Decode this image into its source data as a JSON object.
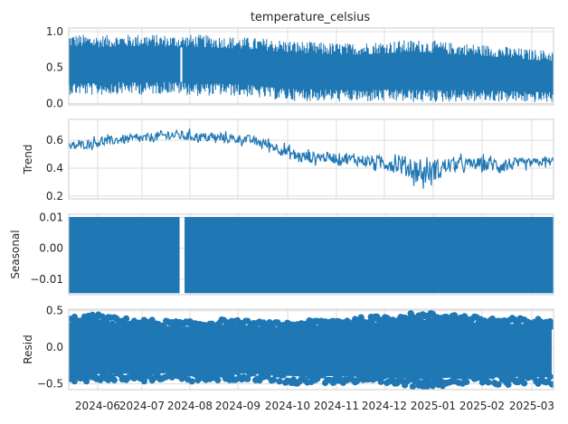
{
  "chart_data": {
    "type": "line",
    "title": "temperature_celsius",
    "x_tick_labels": [
      "2024-06",
      "2024-07",
      "2024-08",
      "2024-09",
      "2024-10",
      "2024-11",
      "2024-12",
      "2025-01",
      "2025-02",
      "2025-03"
    ],
    "x_range": [
      "2024-05-15",
      "2025-03-04"
    ],
    "grid": true,
    "color": "#1f77b4",
    "panels": [
      {
        "name": "observed",
        "ylabel": "",
        "ylim": [
          -0.02,
          1.05
        ],
        "yticks": [
          0.0,
          0.5,
          1.0
        ],
        "ytick_labels": [
          "0.0",
          "0.5",
          "1.0"
        ],
        "style": "line",
        "series": [
          {
            "x": "2024-05-15",
            "lo": 0.12,
            "hi": 0.97
          },
          {
            "x": "2024-06-01",
            "lo": 0.11,
            "hi": 0.95
          },
          {
            "x": "2024-06-15",
            "lo": 0.13,
            "hi": 0.96
          },
          {
            "x": "2024-07-01",
            "lo": 0.12,
            "hi": 0.97
          },
          {
            "x": "2024-07-15",
            "lo": 0.14,
            "hi": 0.95
          },
          {
            "x": "2024-08-01",
            "lo": 0.1,
            "hi": 0.96
          },
          {
            "x": "2024-08-15",
            "lo": 0.11,
            "hi": 0.94
          },
          {
            "x": "2024-09-01",
            "lo": 0.09,
            "hi": 0.92
          },
          {
            "x": "2024-09-15",
            "lo": 0.05,
            "hi": 0.9
          },
          {
            "x": "2024-10-01",
            "lo": 0.03,
            "hi": 0.87
          },
          {
            "x": "2024-10-15",
            "lo": 0.03,
            "hi": 0.85
          },
          {
            "x": "2024-11-01",
            "lo": 0.02,
            "hi": 0.84
          },
          {
            "x": "2024-11-15",
            "lo": 0.02,
            "hi": 0.86
          },
          {
            "x": "2024-12-01",
            "lo": 0.02,
            "hi": 0.88
          },
          {
            "x": "2024-12-15",
            "lo": 0.01,
            "hi": 0.89
          },
          {
            "x": "2025-01-01",
            "lo": 0.02,
            "hi": 0.85
          },
          {
            "x": "2025-01-15",
            "lo": 0.02,
            "hi": 0.83
          },
          {
            "x": "2025-02-01",
            "lo": 0.02,
            "hi": 0.8
          },
          {
            "x": "2025-02-15",
            "lo": 0.01,
            "hi": 0.76
          },
          {
            "x": "2025-03-04",
            "lo": 0.01,
            "hi": 0.74
          }
        ]
      },
      {
        "name": "trend",
        "ylabel": "Trend",
        "ylim": [
          0.18,
          0.75
        ],
        "yticks": [
          0.2,
          0.4,
          0.6
        ],
        "ytick_labels": [
          "0.2",
          "0.4",
          "0.6"
        ],
        "style": "line",
        "series": [
          {
            "x": "2024-05-15",
            "lo": 0.5,
            "hi": 0.6
          },
          {
            "x": "2024-06-01",
            "lo": 0.53,
            "hi": 0.64
          },
          {
            "x": "2024-06-15",
            "lo": 0.55,
            "hi": 0.66
          },
          {
            "x": "2024-07-01",
            "lo": 0.56,
            "hi": 0.67
          },
          {
            "x": "2024-07-15",
            "lo": 0.58,
            "hi": 0.7
          },
          {
            "x": "2024-08-01",
            "lo": 0.57,
            "hi": 0.68
          },
          {
            "x": "2024-08-15",
            "lo": 0.56,
            "hi": 0.67
          },
          {
            "x": "2024-09-01",
            "lo": 0.55,
            "hi": 0.66
          },
          {
            "x": "2024-09-15",
            "lo": 0.5,
            "hi": 0.62
          },
          {
            "x": "2024-10-01",
            "lo": 0.4,
            "hi": 0.56
          },
          {
            "x": "2024-10-15",
            "lo": 0.42,
            "hi": 0.54
          },
          {
            "x": "2024-11-01",
            "lo": 0.4,
            "hi": 0.53
          },
          {
            "x": "2024-11-15",
            "lo": 0.37,
            "hi": 0.52
          },
          {
            "x": "2024-12-01",
            "lo": 0.31,
            "hi": 0.55
          },
          {
            "x": "2024-12-15",
            "lo": 0.22,
            "hi": 0.5
          },
          {
            "x": "2025-01-01",
            "lo": 0.33,
            "hi": 0.52
          },
          {
            "x": "2025-01-15",
            "lo": 0.36,
            "hi": 0.5
          },
          {
            "x": "2025-02-01",
            "lo": 0.33,
            "hi": 0.52
          },
          {
            "x": "2025-02-15",
            "lo": 0.38,
            "hi": 0.49
          },
          {
            "x": "2025-03-04",
            "lo": 0.4,
            "hi": 0.5
          }
        ]
      },
      {
        "name": "seasonal",
        "ylabel": "Seasonal",
        "ylim": [
          -0.015,
          0.011
        ],
        "yticks": [
          -0.01,
          0.0,
          0.01
        ],
        "ytick_labels": [
          "−0.01",
          "0.00",
          "0.01"
        ],
        "style": "band",
        "band": [
          -0.0145,
          0.0101
        ],
        "gap": [
          "2024-07-21",
          "2024-07-24"
        ]
      },
      {
        "name": "resid",
        "ylabel": "Resid",
        "ylim": [
          -0.58,
          0.52
        ],
        "yticks": [
          -0.5,
          0.0,
          0.5
        ],
        "ytick_labels": [
          "−0.5",
          "0.0",
          "0.5"
        ],
        "style": "scatter",
        "series": [
          {
            "x": "2024-05-15",
            "lo": -0.48,
            "hi": 0.42
          },
          {
            "x": "2024-06-01",
            "lo": -0.46,
            "hi": 0.45
          },
          {
            "x": "2024-06-15",
            "lo": -0.45,
            "hi": 0.4
          },
          {
            "x": "2024-07-01",
            "lo": -0.47,
            "hi": 0.38
          },
          {
            "x": "2024-07-15",
            "lo": -0.44,
            "hi": 0.36
          },
          {
            "x": "2024-08-01",
            "lo": -0.48,
            "hi": 0.35
          },
          {
            "x": "2024-08-15",
            "lo": -0.46,
            "hi": 0.38
          },
          {
            "x": "2024-09-01",
            "lo": -0.45,
            "hi": 0.36
          },
          {
            "x": "2024-09-15",
            "lo": -0.47,
            "hi": 0.34
          },
          {
            "x": "2024-10-01",
            "lo": -0.5,
            "hi": 0.35
          },
          {
            "x": "2024-10-15",
            "lo": -0.49,
            "hi": 0.38
          },
          {
            "x": "2024-11-01",
            "lo": -0.5,
            "hi": 0.4
          },
          {
            "x": "2024-11-15",
            "lo": -0.52,
            "hi": 0.42
          },
          {
            "x": "2024-12-01",
            "lo": -0.53,
            "hi": 0.46
          },
          {
            "x": "2024-12-15",
            "lo": -0.55,
            "hi": 0.47
          },
          {
            "x": "2025-01-01",
            "lo": -0.52,
            "hi": 0.47
          },
          {
            "x": "2025-01-15",
            "lo": -0.5,
            "hi": 0.42
          },
          {
            "x": "2025-02-01",
            "lo": -0.52,
            "hi": 0.4
          },
          {
            "x": "2025-02-15",
            "lo": -0.5,
            "hi": 0.4
          },
          {
            "x": "2025-03-04",
            "lo": -0.52,
            "hi": 0.38
          }
        ]
      }
    ]
  }
}
